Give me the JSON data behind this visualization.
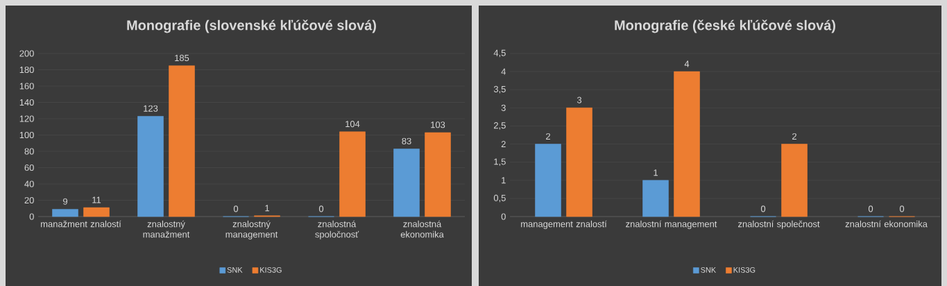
{
  "chart_data": [
    {
      "type": "bar",
      "title": "Monografie (slovenské kľúčové slová)",
      "categories": [
        "manažment znalostí",
        "znalostný manažment",
        "znalostný management",
        "znalostná spoločnosť",
        "znalostná ekonomika"
      ],
      "series": [
        {
          "name": "SNK",
          "color": "#5b9bd5",
          "values": [
            9,
            123,
            0,
            0,
            83
          ]
        },
        {
          "name": "KIS3G",
          "color": "#ed7d31",
          "values": [
            11,
            185,
            1,
            104,
            103
          ]
        }
      ],
      "ylim": [
        0,
        200
      ],
      "yticks": [
        0,
        20,
        40,
        60,
        80,
        100,
        120,
        140,
        160,
        180,
        200
      ],
      "grid": "y",
      "data_labels": true,
      "legend": "bottom"
    },
    {
      "type": "bar",
      "title": "Monografie (české kľúčové slová)",
      "categories": [
        "management znalostí",
        "znalostní management",
        "znalostní společnost",
        "znalostní ekonomika"
      ],
      "series": [
        {
          "name": "SNK",
          "color": "#5b9bd5",
          "values": [
            2,
            1,
            0,
            0
          ]
        },
        {
          "name": "KIS3G",
          "color": "#ed7d31",
          "values": [
            3,
            4,
            2,
            0
          ]
        }
      ],
      "ylim": [
        0,
        4.5
      ],
      "yticks": [
        0,
        {
          "value": 0.5,
          "label": "0,5"
        },
        1,
        {
          "value": 1.5,
          "label": "1,5"
        },
        2,
        {
          "value": 2.5,
          "label": "2,5"
        },
        3,
        {
          "value": 3.5,
          "label": "3,5"
        },
        4,
        {
          "value": 4.5,
          "label": "4,5"
        }
      ],
      "grid": "y",
      "data_labels": true,
      "legend": "bottom"
    }
  ]
}
